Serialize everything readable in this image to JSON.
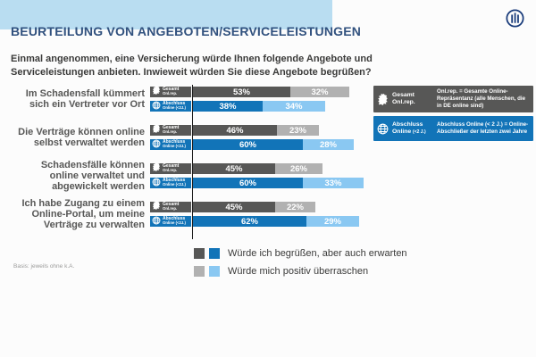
{
  "header": {
    "title": "BEURTEILUNG VON ANGEBOTEN/SERVICELEISTUNGEN"
  },
  "intro": {
    "text": "Einmal angenommen, eine Versicherung würde Ihnen folgende Angebote und Serviceleistungen anbieten. Inwieweit würden Sie diese Angebote begrüßen?"
  },
  "chart_data": {
    "type": "bar",
    "orientation": "horizontal",
    "stacked": true,
    "unit": "%",
    "xlim": [
      0,
      100
    ],
    "value_labels_shown": true,
    "title": "Beurteilung von Angeboten/Serviceleistungen",
    "categories": [
      "Im Schadensfall kümmert sich ein Vertreter vor Ort",
      "Die Verträge können online selbst verwaltet werden",
      "Schadensfälle können online verwaltet und abgewickelt werden",
      "Ich habe Zugang zu einem Online-Portal, um meine Verträge zu verwalten"
    ],
    "row_groups": [
      {
        "key": "gesamt",
        "chip_line1": "Gesamt",
        "chip_line2": "Onl.rep.",
        "icon": "germany-map-icon",
        "color_key": "dark",
        "surprise_color_key": "lightGray"
      },
      {
        "key": "abschluss",
        "chip_line1": "Abschluss",
        "chip_line2": "Online (<2J.)",
        "icon": "globe-icon",
        "color_key": "blue",
        "surprise_color_key": "lightBlue"
      }
    ],
    "series": [
      {
        "name": "Gesamt Onl.rep. — Würde ich begrüßen, aber auch erwarten",
        "group": "gesamt",
        "values": [
          53,
          46,
          45,
          45
        ]
      },
      {
        "name": "Gesamt Onl.rep. — Würde mich positiv überraschen",
        "group": "gesamt",
        "values": [
          32,
          23,
          26,
          22
        ]
      },
      {
        "name": "Abschluss Online (<2J.) — Würde ich begrüßen, aber auch erwarten",
        "group": "abschluss",
        "values": [
          38,
          60,
          60,
          62
        ]
      },
      {
        "name": "Abschluss Online (<2J.) — Würde mich positiv überraschen",
        "group": "abschluss",
        "values": [
          34,
          28,
          33,
          29
        ]
      }
    ]
  },
  "side_legend": {
    "gesamt": {
      "name_line1": "Gesamt",
      "name_line2": "Onl.rep.",
      "desc": "Onl.rep. = Gesamte Online-Repräsentanz (alle Menschen, die in DE online sind)"
    },
    "abschluss": {
      "name_line1": "Abschluss",
      "name_line2": "Online",
      "name_suffix": "(<2 J.)",
      "desc": "Abschluss Online (< 2 J.) = Online-Abschließer der letzten zwei Jahre"
    }
  },
  "answer_legend": {
    "items": [
      {
        "label": "Würde ich begrüßen, aber auch erwarten",
        "swatches": [
          "dark",
          "blue"
        ]
      },
      {
        "label": "Würde mich positiv überraschen",
        "swatches": [
          "lightGray",
          "lightBlue"
        ]
      }
    ]
  },
  "footnote": {
    "text": "Basis: jeweils ohne k.A."
  },
  "colors": {
    "dark": "#575756",
    "lightGray": "#b1b1b1",
    "blue": "#1274b8",
    "lightBlue": "#8ac8f2",
    "band": "#b9ddf1",
    "title": "#31517e",
    "logoBlue": "#1a3c7b"
  }
}
